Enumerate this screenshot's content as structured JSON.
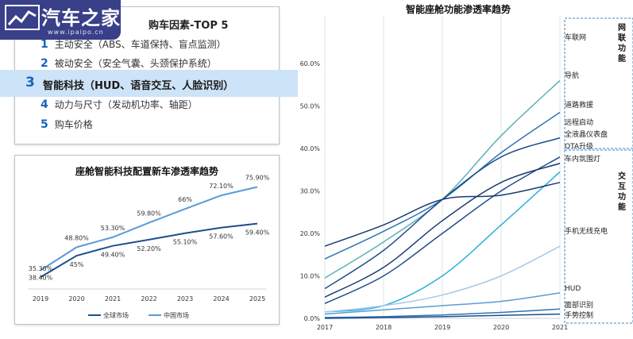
{
  "logo": {
    "name": "汽车之家",
    "url": "www.ipaipo.cn"
  },
  "factors": {
    "title": "购车因素-TOP 5",
    "items": [
      {
        "num": "1",
        "text": "主动安全（ABS、车道保持、盲点监测）"
      },
      {
        "num": "2",
        "text": "被动安全（安全气囊、头颈保护系统）"
      },
      {
        "num": "3",
        "text": "智能科技（HUD、语音交互、人脸识别）"
      },
      {
        "num": "4",
        "text": "动力与尺寸（发动机功率、轴距）"
      },
      {
        "num": "5",
        "text": "购车价格"
      }
    ]
  },
  "colors": {
    "dark": "#1f4e8c",
    "mid": "#2e75b6",
    "light": "#5b9bd5",
    "cyan": "#2ab0d8",
    "teal": "#5fb0b8",
    "pale": "#a9c8e8"
  },
  "chart_data": [
    {
      "type": "line",
      "title": "座舱智能科技配置新车渗透率趋势",
      "x": [
        "2019",
        "2020",
        "2021",
        "2022",
        "2023",
        "2024",
        "2025"
      ],
      "series": [
        {
          "name": "全球市场",
          "values": [
            35.3,
            45,
            49.4,
            52.2,
            55.1,
            57.6,
            59.4
          ],
          "labels": [
            "35.30%",
            "45%",
            "49.40%",
            "52.20%",
            "55.10%",
            "57.60%",
            "59.40%"
          ]
        },
        {
          "name": "中国市场",
          "values": [
            38.4,
            48.8,
            53.3,
            59.8,
            66,
            72.1,
            75.9
          ],
          "labels": [
            "38.40%",
            "48.80%",
            "53.30%",
            "59.80%",
            "66%",
            "72.10%",
            "75.90%"
          ]
        }
      ],
      "ylim": [
        30,
        80
      ],
      "legend": "bottom"
    },
    {
      "type": "line",
      "title": "智能座舱功能渗透率趋势",
      "x": [
        "2017",
        "2018",
        "2019",
        "2020",
        "2021"
      ],
      "y_ticks": [
        "0.0%",
        "10.0%",
        "20.0%",
        "30.0%",
        "40.0%",
        "50.0%",
        "60.0%"
      ],
      "ylim": [
        0,
        60
      ],
      "grid": "vertical",
      "groups": [
        {
          "label": "网联功能"
        },
        {
          "label": "交互功能"
        }
      ],
      "series": [
        {
          "name": "车联网",
          "values": [
            9.5,
            18,
            28,
            43,
            56
          ],
          "color": "#5fb0b8"
        },
        {
          "name": "导航",
          "values": [
            14,
            20.5,
            28,
            39,
            48.5
          ],
          "color": "#2e75b6"
        },
        {
          "name": "道路救援",
          "values": [
            7,
            16,
            28,
            38,
            42.5
          ],
          "color": "#1f4e8c"
        },
        {
          "name": "远程启动",
          "values": [
            3.5,
            10,
            20,
            30,
            38
          ],
          "color": "#1f4e8c"
        },
        {
          "name": "全液晶仪表盘",
          "values": [
            5,
            12,
            23,
            32,
            36.5
          ],
          "color": "#1a3c6e"
        },
        {
          "name": "OTA升级",
          "values": [
            1.5,
            3,
            10,
            22,
            34.5
          ],
          "color": "#2ab0d8"
        },
        {
          "name": "车内氛围灯",
          "values": [
            17,
            22,
            28,
            29,
            32
          ],
          "color": "#1a3c6e"
        },
        {
          "name": "手机无线充电",
          "values": [
            1.5,
            3,
            5.5,
            10,
            17
          ],
          "color": "#a9c8e8"
        },
        {
          "name": "HUD",
          "values": [
            1,
            2,
            3,
            4,
            6
          ],
          "color": "#5b9bd5"
        },
        {
          "name": "面部识别",
          "values": [
            0.2,
            0.4,
            0.8,
            1.4,
            2.2
          ],
          "color": "#2e75b6"
        },
        {
          "name": "手势控制",
          "values": [
            0,
            0.2,
            0.4,
            0.7,
            1
          ],
          "color": "#1f4e8c"
        }
      ]
    }
  ]
}
